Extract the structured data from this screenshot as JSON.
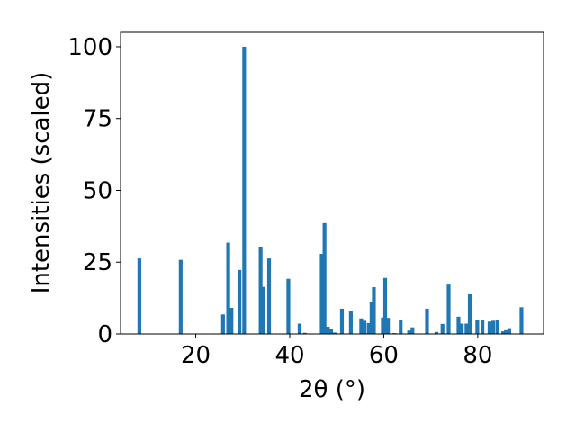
{
  "chart_data": {
    "type": "bar",
    "title": "",
    "xlabel": "2θ (°)",
    "ylabel": "Intensities (scaled)",
    "xlim": [
      4,
      94
    ],
    "ylim": [
      0,
      105
    ],
    "xticks": [
      20,
      40,
      60,
      80
    ],
    "yticks": [
      0,
      25,
      50,
      75,
      100
    ],
    "grid": false,
    "bar_color": "#1f77b4",
    "bar_width": 0.8,
    "x": [
      8,
      16.8,
      25.8,
      26.9,
      27.6,
      29.3,
      30.3,
      33.8,
      34.4,
      35.6,
      39.7,
      42.1,
      43.2,
      46.8,
      47.4,
      48.1,
      48.8,
      49.6,
      51.1,
      53.0,
      55.2,
      55.9,
      56.8,
      57.4,
      57.9,
      59.8,
      60.3,
      60.9,
      62.3,
      63.6,
      65.4,
      66.1,
      69.2,
      71.2,
      72.5,
      73.8,
      75.9,
      76.6,
      77.6,
      78.3,
      79.9,
      81.0,
      82.5,
      83.3,
      84.2,
      85.4,
      86.0,
      86.7,
      89.3
    ],
    "values": [
      26.3,
      25.8,
      6.8,
      31.8,
      9.1,
      22.3,
      100,
      30.2,
      16.4,
      26.3,
      19.2,
      3.6,
      0.4,
      27.9,
      38.6,
      2.5,
      1.8,
      0.5,
      8.8,
      7.9,
      5.4,
      4.6,
      3.8,
      11.2,
      16.3,
      5.7,
      19.5,
      5.6,
      0.3,
      4.8,
      1.2,
      2.3,
      8.8,
      0.7,
      3.5,
      17.2,
      6.0,
      3.6,
      3.6,
      13.8,
      5.0,
      5.0,
      4.3,
      4.6,
      4.8,
      0.9,
      1.3,
      2.0,
      9.3
    ]
  }
}
